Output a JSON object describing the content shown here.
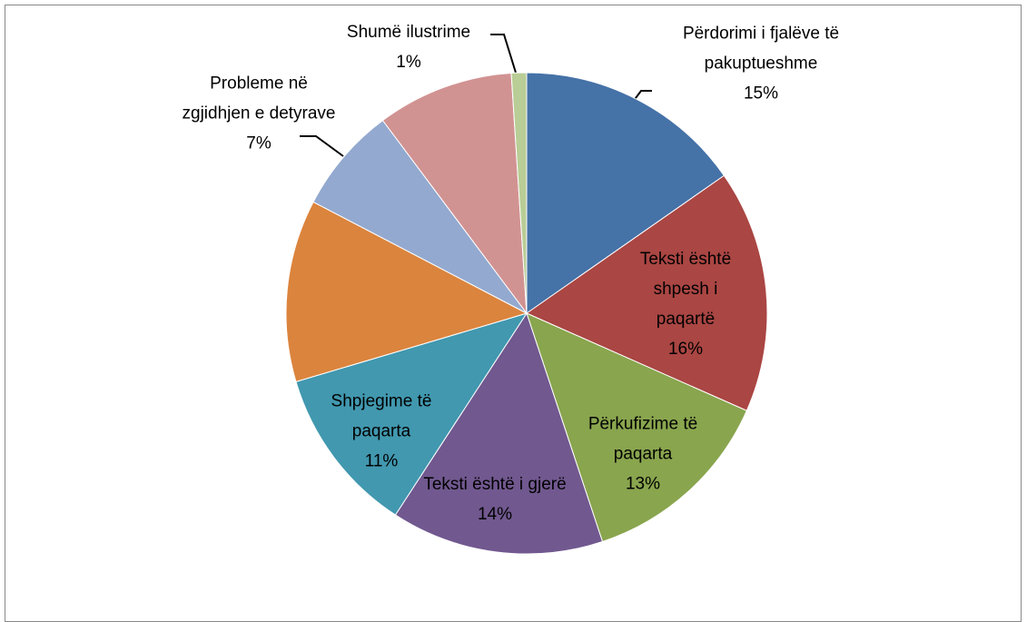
{
  "chart_data": {
    "type": "pie",
    "categories": [
      "Përdorimi i fjalëve të pakuptueshme",
      "Teksti është shpesh i paqartë",
      "Përkufizime të paqarta",
      "Teksti është i gjerë",
      "Shpjegime të paqarta",
      null,
      "Probleme në zgjidhjen e detyrave",
      null,
      "Shumë ilustrime"
    ],
    "values": [
      15,
      16,
      13,
      14,
      11,
      12,
      7,
      9,
      1
    ],
    "value_labels": [
      "15%",
      "16%",
      "13%",
      "14%",
      "11%",
      null,
      "7%",
      null,
      "1%"
    ],
    "colors": [
      "#4572a7",
      "#aa4643",
      "#89a54e",
      "#71588f",
      "#4198af",
      "#db843d",
      "#93a9cf",
      "#d19392",
      "#b9cd96"
    ]
  }
}
